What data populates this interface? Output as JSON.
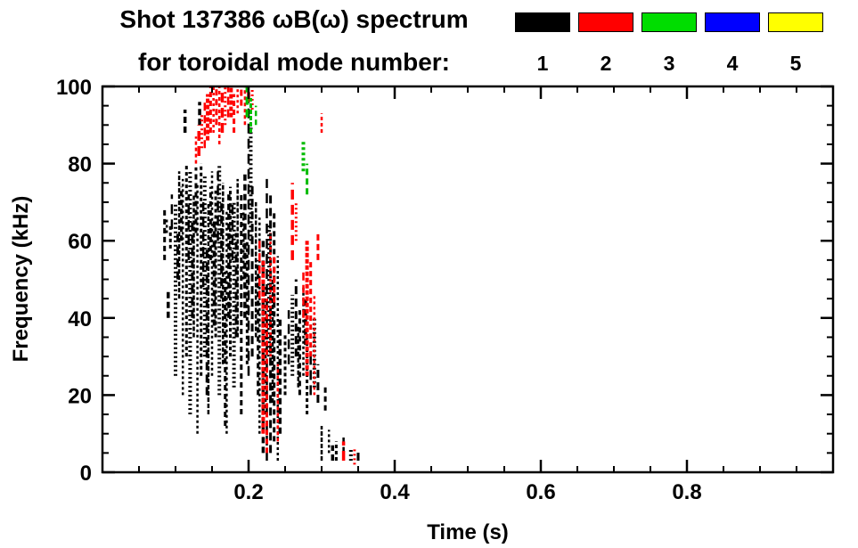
{
  "title": {
    "line1": "Shot 137386 ωB(ω) spectrum",
    "line2": "for toroidal mode number:"
  },
  "legend": {
    "modes": [
      {
        "label": "1",
        "color": "#000000"
      },
      {
        "label": "2",
        "color": "#ff0000"
      },
      {
        "label": "3",
        "color": "#00dd00"
      },
      {
        "label": "4",
        "color": "#0000ff"
      },
      {
        "label": "5",
        "color": "#ffff00"
      }
    ]
  },
  "chart_data": {
    "type": "scatter",
    "title": "Shot 137386 ωB(ω) spectrum for toroidal mode number",
    "xlabel": "Time (s)",
    "ylabel": "Frequency (kHz)",
    "xlim": [
      0,
      1.0
    ],
    "ylim": [
      0,
      100
    ],
    "x_ticks": [
      0.2,
      0.4,
      0.6,
      0.8
    ],
    "y_ticks": [
      0,
      20,
      40,
      60,
      80,
      100
    ],
    "x_minor_step": 0.05,
    "y_minor_step": 5,
    "grid": false,
    "legend_position": "top-right",
    "series": [
      {
        "name": "mode 1",
        "color": "#000000",
        "streaks": [
          [
            0.085,
            55,
            68
          ],
          [
            0.088,
            62,
            66
          ],
          [
            0.09,
            40,
            47
          ],
          [
            0.093,
            58,
            64
          ],
          [
            0.095,
            63,
            72
          ],
          [
            0.1,
            25,
            70
          ],
          [
            0.103,
            50,
            62
          ],
          [
            0.105,
            45,
            78
          ],
          [
            0.108,
            60,
            74
          ],
          [
            0.11,
            20,
            76
          ],
          [
            0.113,
            88,
            94
          ],
          [
            0.115,
            30,
            80
          ],
          [
            0.118,
            55,
            72
          ],
          [
            0.12,
            15,
            78
          ],
          [
            0.123,
            40,
            66
          ],
          [
            0.125,
            35,
            72
          ],
          [
            0.128,
            62,
            79
          ],
          [
            0.13,
            10,
            75
          ],
          [
            0.133,
            90,
            96
          ],
          [
            0.135,
            25,
            80
          ],
          [
            0.138,
            48,
            70
          ],
          [
            0.14,
            30,
            77
          ],
          [
            0.143,
            20,
            58
          ],
          [
            0.145,
            15,
            70
          ],
          [
            0.148,
            55,
            74
          ],
          [
            0.15,
            25,
            78
          ],
          [
            0.153,
            38,
            66
          ],
          [
            0.155,
            35,
            73
          ],
          [
            0.158,
            60,
            78
          ],
          [
            0.16,
            20,
            80
          ],
          [
            0.163,
            45,
            70
          ],
          [
            0.165,
            28,
            75
          ],
          [
            0.168,
            12,
            52
          ],
          [
            0.17,
            10,
            68
          ],
          [
            0.173,
            40,
            72
          ],
          [
            0.175,
            30,
            74
          ],
          [
            0.178,
            55,
            70
          ],
          [
            0.18,
            22,
            70
          ],
          [
            0.183,
            35,
            62
          ],
          [
            0.185,
            35,
            76
          ],
          [
            0.19,
            15,
            72
          ],
          [
            0.193,
            50,
            68
          ],
          [
            0.195,
            40,
            78
          ],
          [
            0.198,
            28,
            60
          ],
          [
            0.2,
            25,
            96
          ],
          [
            0.203,
            60,
            90
          ],
          [
            0.205,
            30,
            75
          ],
          [
            0.21,
            35,
            70
          ],
          [
            0.213,
            20,
            55
          ],
          [
            0.215,
            10,
            66
          ],
          [
            0.22,
            5,
            60
          ],
          [
            0.223,
            15,
            48
          ],
          [
            0.225,
            3,
            76
          ],
          [
            0.228,
            30,
            64
          ],
          [
            0.23,
            5,
            72
          ],
          [
            0.233,
            18,
            50
          ],
          [
            0.235,
            8,
            68
          ],
          [
            0.24,
            3,
            56
          ],
          [
            0.243,
            10,
            40
          ],
          [
            0.25,
            20,
            36
          ],
          [
            0.255,
            28,
            42
          ],
          [
            0.26,
            25,
            46
          ],
          [
            0.265,
            30,
            50
          ],
          [
            0.268,
            22,
            38
          ],
          [
            0.27,
            20,
            42
          ],
          [
            0.275,
            25,
            48
          ],
          [
            0.278,
            33,
            45
          ],
          [
            0.28,
            15,
            35
          ],
          [
            0.285,
            20,
            31
          ],
          [
            0.29,
            22,
            40
          ],
          [
            0.295,
            18,
            28
          ],
          [
            0.3,
            3,
            12
          ],
          [
            0.305,
            16,
            22
          ],
          [
            0.31,
            5,
            11
          ],
          [
            0.315,
            3,
            7
          ],
          [
            0.32,
            3,
            8
          ],
          [
            0.33,
            4,
            9
          ],
          [
            0.34,
            3,
            6
          ],
          [
            0.35,
            3,
            6
          ]
        ]
      },
      {
        "name": "mode 2",
        "color": "#ff0000",
        "streaks": [
          [
            0.128,
            80,
            87
          ],
          [
            0.132,
            82,
            90
          ],
          [
            0.136,
            84,
            93
          ],
          [
            0.14,
            84,
            96
          ],
          [
            0.144,
            86,
            98
          ],
          [
            0.148,
            88,
            100
          ],
          [
            0.152,
            88,
            100
          ],
          [
            0.156,
            90,
            100
          ],
          [
            0.16,
            85,
            100
          ],
          [
            0.164,
            88,
            100
          ],
          [
            0.168,
            90,
            100
          ],
          [
            0.172,
            92,
            100
          ],
          [
            0.176,
            92,
            100
          ],
          [
            0.18,
            88,
            98
          ],
          [
            0.185,
            93,
            100
          ],
          [
            0.19,
            95,
            100
          ],
          [
            0.195,
            90,
            100
          ],
          [
            0.2,
            96,
            100
          ],
          [
            0.205,
            94,
            100
          ],
          [
            0.215,
            45,
            60
          ],
          [
            0.22,
            10,
            55
          ],
          [
            0.225,
            5,
            45
          ],
          [
            0.23,
            30,
            62
          ],
          [
            0.235,
            44,
            56
          ],
          [
            0.24,
            8,
            28
          ],
          [
            0.26,
            55,
            75
          ],
          [
            0.265,
            60,
            70
          ],
          [
            0.275,
            40,
            52
          ],
          [
            0.28,
            25,
            60
          ],
          [
            0.285,
            30,
            55
          ],
          [
            0.29,
            20,
            46
          ],
          [
            0.295,
            55,
            62
          ],
          [
            0.3,
            88,
            93
          ],
          [
            0.33,
            3,
            8
          ],
          [
            0.345,
            2,
            6
          ]
        ]
      },
      {
        "name": "mode 3",
        "color": "#00bb00",
        "streaks": [
          [
            0.198,
            92,
            100
          ],
          [
            0.203,
            88,
            97
          ],
          [
            0.21,
            90,
            95
          ],
          [
            0.275,
            78,
            86
          ],
          [
            0.28,
            72,
            80
          ]
        ]
      }
    ]
  }
}
